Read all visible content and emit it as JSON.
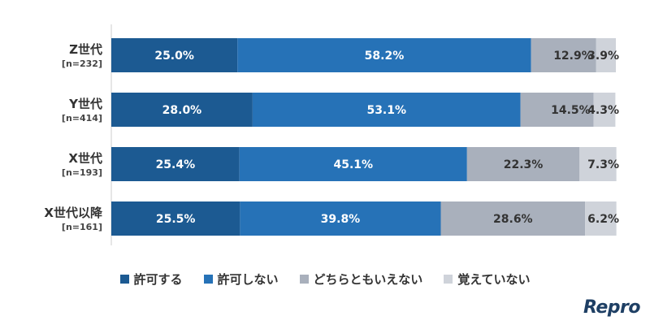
{
  "chart_data": {
    "type": "bar",
    "orientation": "horizontal",
    "stacked": true,
    "unit": "%",
    "categories": [
      {
        "label": "Z世代",
        "n": "[n=232]"
      },
      {
        "label": "Y世代",
        "n": "[n=414]"
      },
      {
        "label": "X世代",
        "n": "[n=193]"
      },
      {
        "label": "X世代以降",
        "n": "[n=161]"
      }
    ],
    "series": [
      {
        "name": "許可する",
        "color": "#1c5a92",
        "values": [
          25.0,
          28.0,
          25.4,
          25.5
        ],
        "labels": [
          "25.0%",
          "28.0%",
          "25.4%",
          "25.5%"
        ]
      },
      {
        "name": "許可しない",
        "color": "#2672b7",
        "values": [
          58.2,
          53.1,
          45.1,
          39.8
        ],
        "labels": [
          "58.2%",
          "53.1%",
          "45.1%",
          "39.8%"
        ]
      },
      {
        "name": "どちらともいえない",
        "color": "#a9b0bc",
        "values": [
          12.9,
          14.5,
          22.3,
          28.6
        ],
        "labels": [
          "12.9%",
          "14.5%",
          "22.3%",
          "28.6%"
        ]
      },
      {
        "name": "覚えていない",
        "color": "#cfd3da",
        "values": [
          3.9,
          4.3,
          7.3,
          6.2
        ],
        "labels": [
          "3.9%",
          "4.3%",
          "7.3%",
          "6.2%"
        ]
      }
    ],
    "xlim": [
      0,
      100
    ],
    "legend_position": "bottom"
  },
  "brand": {
    "logo_text": "Repro"
  }
}
